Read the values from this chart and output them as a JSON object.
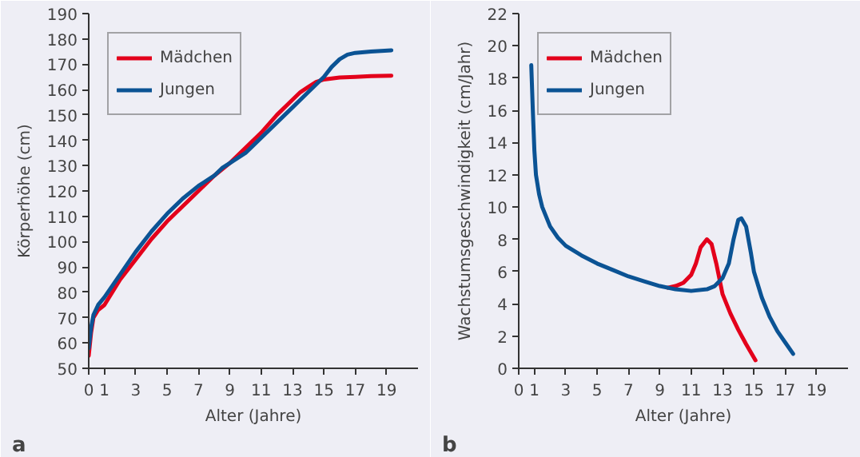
{
  "chart_data": [
    {
      "type": "line",
      "xlabel": "Alter (Jahre)",
      "ylabel": "Körperhöhe (cm)",
      "annotations": [
        "a"
      ],
      "xlim": [
        0,
        21
      ],
      "xticks": [
        0,
        1,
        3,
        5,
        7,
        9,
        11,
        13,
        15,
        17,
        19
      ],
      "ylim": [
        50,
        190
      ],
      "yticks": [
        50,
        60,
        70,
        80,
        90,
        100,
        110,
        120,
        130,
        140,
        150,
        160,
        170,
        180,
        190
      ],
      "grid": false,
      "legend": "top left",
      "series": [
        {
          "name": "Mädchen",
          "color": "#e3001b",
          "x": [
            0,
            0.15,
            0.3,
            0.6,
            1,
            2,
            3,
            4,
            5,
            6,
            7,
            8,
            9,
            10,
            11,
            12,
            13,
            13.5,
            14,
            14.5,
            15,
            16,
            17,
            18,
            19.3
          ],
          "values": [
            55,
            64,
            70,
            73,
            75,
            85,
            93,
            101,
            108,
            114,
            120,
            126,
            131,
            137,
            143,
            150,
            156,
            159,
            161,
            163,
            164,
            164.8,
            165,
            165.3,
            165.5
          ]
        },
        {
          "name": "Jungen",
          "color": "#0b5394",
          "x": [
            0,
            0.15,
            0.3,
            0.6,
            1,
            2,
            3,
            4,
            5,
            6,
            7,
            8,
            8.5,
            9,
            10,
            11,
            12,
            13,
            14,
            15,
            15.5,
            16,
            16.5,
            17,
            18,
            19.3
          ],
          "values": [
            58,
            66,
            71,
            75,
            78,
            87,
            96,
            104,
            111,
            117,
            122,
            126,
            129,
            131,
            135,
            141,
            147,
            153,
            159,
            165,
            169,
            172,
            173.8,
            174.5,
            175,
            175.5
          ]
        }
      ]
    },
    {
      "type": "line",
      "xlabel": "Alter (Jahre)",
      "ylabel": "Wachstumsgeschwindigkeit (cm/Jahr)",
      "annotations": [
        "b"
      ],
      "xlim": [
        0,
        21
      ],
      "xticks": [
        0,
        1,
        3,
        5,
        7,
        9,
        11,
        13,
        15,
        17,
        19
      ],
      "ylim": [
        0,
        22
      ],
      "yticks": [
        0,
        2,
        4,
        6,
        8,
        10,
        12,
        14,
        16,
        18,
        20,
        22
      ],
      "grid": false,
      "legend": "top left",
      "series": [
        {
          "name": "Mädchen",
          "color": "#e3001b",
          "x": [
            9.5,
            10,
            10.5,
            11,
            11.3,
            11.6,
            12,
            12.3,
            12.6,
            13,
            13.5,
            14,
            14.5,
            15.1
          ],
          "values": [
            5.0,
            5.1,
            5.3,
            5.8,
            6.5,
            7.5,
            8.0,
            7.7,
            6.5,
            4.6,
            3.4,
            2.4,
            1.5,
            0.5
          ]
        },
        {
          "name": "Jungen",
          "color": "#0b5394",
          "x": [
            0.8,
            0.9,
            1.0,
            1.1,
            1.3,
            1.5,
            2,
            2.5,
            3,
            4,
            5,
            6,
            7,
            8,
            9,
            10,
            11,
            12,
            12.5,
            13,
            13.4,
            13.7,
            14,
            14.2,
            14.5,
            14.8,
            15,
            15.5,
            16,
            16.5,
            17,
            17.5
          ],
          "values": [
            18.8,
            16,
            13.5,
            12,
            10.8,
            10,
            8.8,
            8.1,
            7.6,
            7.0,
            6.5,
            6.1,
            5.7,
            5.4,
            5.1,
            4.9,
            4.8,
            4.9,
            5.1,
            5.6,
            6.5,
            8.0,
            9.2,
            9.3,
            8.8,
            7.2,
            6.0,
            4.4,
            3.2,
            2.3,
            1.6,
            0.9
          ]
        }
      ]
    }
  ]
}
